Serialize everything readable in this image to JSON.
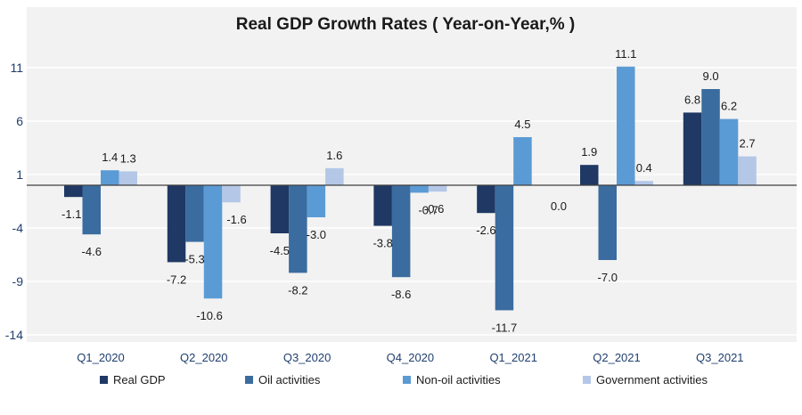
{
  "chart_data": {
    "type": "bar",
    "title": "Real GDP Growth Rates ( Year-on-Year,% )",
    "xlabel": "",
    "ylabel": "",
    "ylim": [
      -14,
      11
    ],
    "yticks": [
      11,
      6,
      1,
      -4,
      -9,
      -14
    ],
    "categories": [
      "Q1_2020",
      "Q2_2020",
      "Q3_2020",
      "Q4_2020",
      "Q1_2021",
      "Q2_2021",
      "Q3_2021"
    ],
    "series": [
      {
        "name": "Real GDP",
        "color": "#1f3864",
        "values": [
          -1.1,
          -7.2,
          -4.5,
          -3.8,
          -2.6,
          1.9,
          6.8
        ]
      },
      {
        "name": "Oil activities",
        "color": "#3a6c9f",
        "values": [
          -4.6,
          -5.3,
          -8.2,
          -8.6,
          -11.7,
          -7.0,
          9.0
        ]
      },
      {
        "name": "Non-oil activities",
        "color": "#5b9bd5",
        "values": [
          1.4,
          -10.6,
          -3.0,
          -0.7,
          4.5,
          11.1,
          6.2
        ]
      },
      {
        "name": "Government activities",
        "color": "#b4c7e7",
        "values": [
          1.3,
          -1.6,
          1.6,
          -0.6,
          0.0,
          0.4,
          2.7
        ]
      }
    ],
    "legend_position": "bottom",
    "grid": true
  }
}
